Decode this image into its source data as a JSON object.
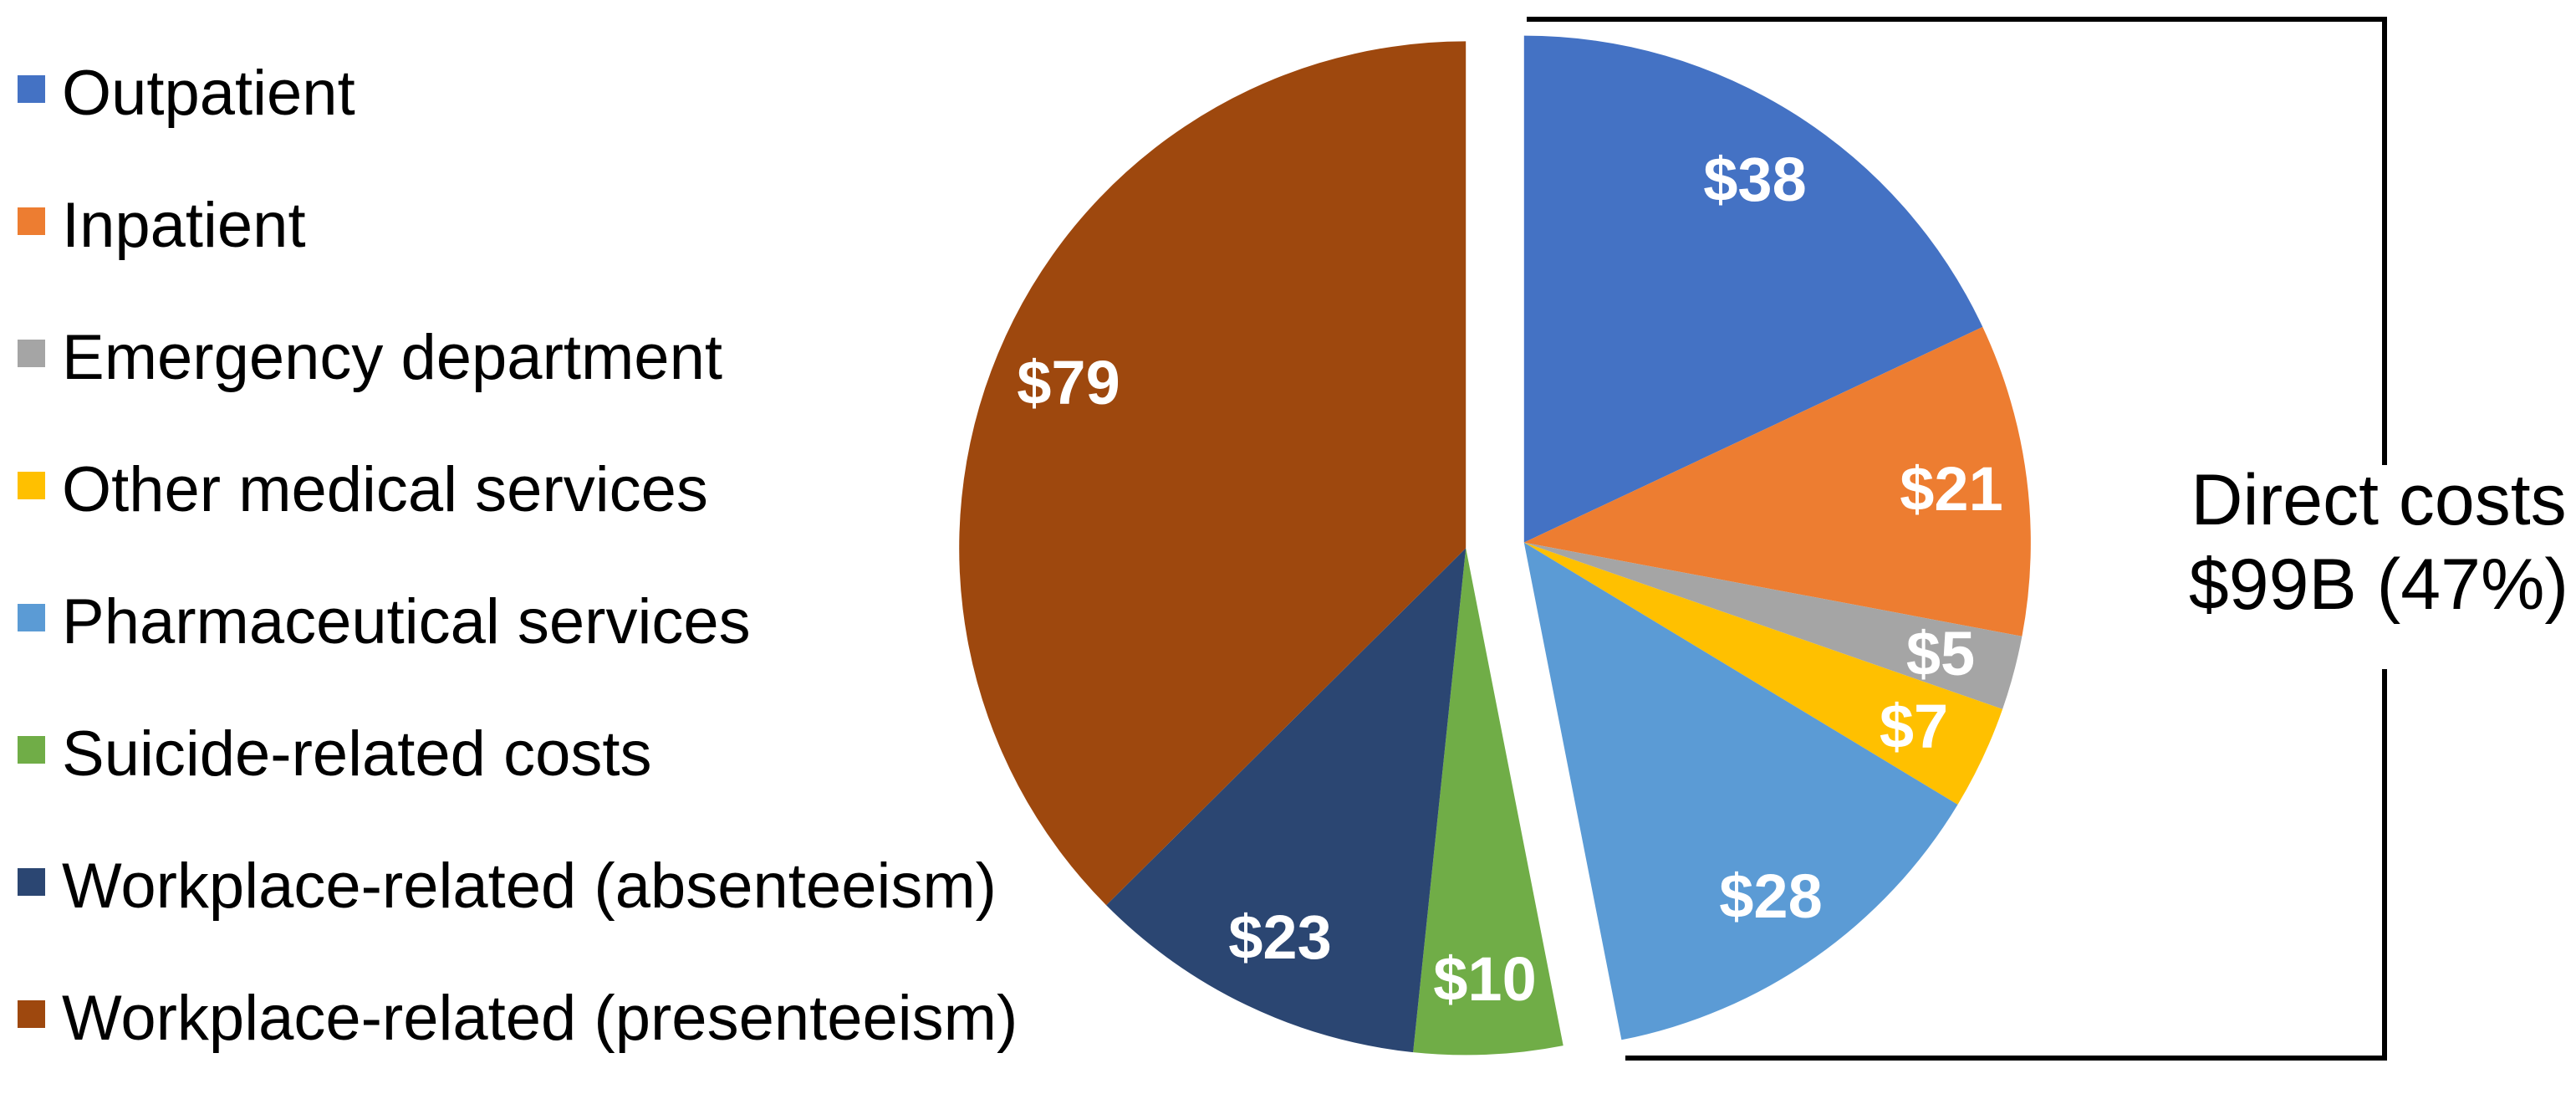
{
  "chart_data": {
    "type": "pie",
    "unit": "$B",
    "total": 211,
    "start_angle_deg": 0,
    "direction": "clockwise",
    "legend_position": "left",
    "exploded_group": "direct",
    "slices": [
      {
        "label": "Outpatient",
        "value": 38,
        "display": "$38",
        "color": "#4472C4",
        "group": "direct"
      },
      {
        "label": "Inpatient",
        "value": 21,
        "display": "$21",
        "color": "#ED7D31",
        "group": "direct"
      },
      {
        "label": "Emergency department",
        "value": 5,
        "display": "$5",
        "color": "#A5A5A5",
        "group": "direct"
      },
      {
        "label": "Other medical services",
        "value": 7,
        "display": "$7",
        "color": "#FFC000",
        "group": "direct"
      },
      {
        "label": "Pharmaceutical services",
        "value": 28,
        "display": "$28",
        "color": "#5B9BD5",
        "group": "direct"
      },
      {
        "label": "Suicide-related costs",
        "value": 10,
        "display": "$10",
        "color": "#70AD47",
        "group": "indirect"
      },
      {
        "label": "Workplace-related (absenteeism)",
        "value": 23,
        "display": "$23",
        "color": "#2B4672",
        "group": "indirect"
      },
      {
        "label": "Workplace-related (presenteeism)",
        "value": 79,
        "display": "$79",
        "color": "#9E480E",
        "group": "indirect"
      }
    ],
    "annotation": {
      "line1": "Direct costs",
      "line2": "$99B (47%)"
    },
    "bracket_color": "#000000",
    "label_text_color": "#ffffff",
    "legend_text_color": "#000000"
  }
}
